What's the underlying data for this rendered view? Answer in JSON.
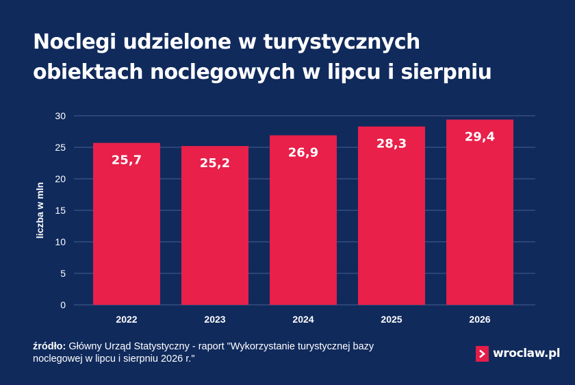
{
  "title_lines": [
    "Noclegi udzielone w turystycznych",
    "obiektach noclegowych w lipcu i sierpniu"
  ],
  "source": {
    "label": "źródło:",
    "text": " Główny Urząd Statystyczny - raport \"Wykorzystanie turystycznej bazy noclegowej w lipcu i sierpniu 2026 r.\""
  },
  "logo": {
    "text": "wroclaw.pl",
    "icon": "chevron-right-icon"
  },
  "colors": {
    "background": "#102a5c",
    "bar": "#e8204a",
    "grid": "#4a5f8f",
    "text": "#ffffff"
  },
  "chart_data": {
    "type": "bar",
    "categories": [
      "2022",
      "2023",
      "2024",
      "2025",
      "2026"
    ],
    "values": [
      25.7,
      25.2,
      26.9,
      28.3,
      29.4
    ],
    "value_labels": [
      "25,7",
      "25,2",
      "26,9",
      "28,3",
      "29,4"
    ],
    "ylabel": "liczba w mln",
    "xlabel": "",
    "ylim": [
      0,
      30
    ],
    "yticks": [
      0,
      5,
      10,
      15,
      20,
      25,
      30
    ],
    "grid": true
  }
}
